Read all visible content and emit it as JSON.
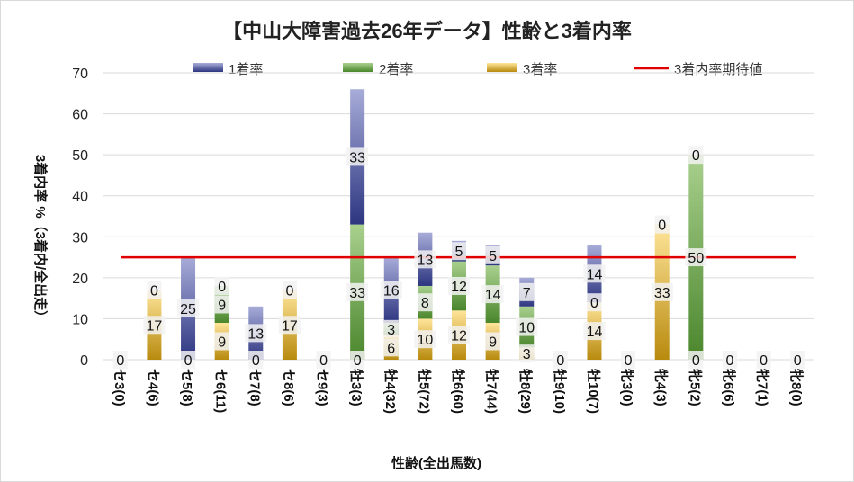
{
  "chart_data": {
    "type": "bar",
    "stacked": true,
    "title": "【中山大障害過去26年データ】性齢と3着内率",
    "xlabel": "性齢(全出馬数)",
    "ylabel": "3着内率 %（3着内/全出走）",
    "ylim": [
      0,
      70
    ],
    "yticks": [
      "0",
      "10",
      "20",
      "30",
      "40",
      "50",
      "60",
      "70"
    ],
    "legend_position": "top",
    "categories": [
      "セ3(0)",
      "セ4(6)",
      "セ5(8)",
      "セ6(11)",
      "セ7(8)",
      "セ8(6)",
      "セ9(3)",
      "牡3(3)",
      "牡4(32)",
      "牡5(72)",
      "牡6(60)",
      "牡7(44)",
      "牡8(29)",
      "牡9(10)",
      "牡10(7)",
      "牝3(0)",
      "牝4(3)",
      "牝5(2)",
      "牝6(6)",
      "牝7(1)",
      "牝8(0)"
    ],
    "series": [
      {
        "name": "3着率",
        "values": [
          0,
          17,
          0,
          9,
          0,
          17,
          0,
          0,
          6,
          10,
          12,
          9,
          3,
          0,
          14,
          0,
          33,
          0,
          0,
          0,
          0
        ],
        "color": "#c9a227"
      },
      {
        "name": "2着率",
        "values": [
          0,
          0,
          0,
          9,
          0,
          0,
          0,
          33,
          3,
          8,
          12,
          14,
          10,
          0,
          0,
          0,
          0,
          50,
          0,
          0,
          0
        ],
        "color": "#5e9e3a"
      },
      {
        "name": "1着率",
        "values": [
          0,
          0,
          25,
          0,
          13,
          0,
          0,
          33,
          16,
          13,
          5,
          5,
          7,
          0,
          14,
          0,
          0,
          0,
          0,
          0,
          0
        ],
        "color": "#3a4590"
      }
    ],
    "data_labels": [
      {
        "value": "0",
        "category": 0,
        "y": 0
      },
      {
        "value": "17",
        "category": 1,
        "y": 8.5
      },
      {
        "value": "0",
        "category": 1,
        "y": 17
      },
      {
        "value": "0",
        "category": 2,
        "y": 0
      },
      {
        "value": "25",
        "category": 2,
        "y": 12.5
      },
      {
        "value": "9",
        "category": 3,
        "y": 4.5
      },
      {
        "value": "9",
        "category": 3,
        "y": 13.5
      },
      {
        "value": "0",
        "category": 3,
        "y": 18
      },
      {
        "value": "0",
        "category": 4,
        "y": 0
      },
      {
        "value": "13",
        "category": 4,
        "y": 6.5
      },
      {
        "value": "17",
        "category": 5,
        "y": 8.5
      },
      {
        "value": "0",
        "category": 5,
        "y": 17
      },
      {
        "value": "0",
        "category": 6,
        "y": 0
      },
      {
        "value": "0",
        "category": 7,
        "y": 0
      },
      {
        "value": "33",
        "category": 7,
        "y": 16.5
      },
      {
        "value": "33",
        "category": 7,
        "y": 49.5
      },
      {
        "value": "6",
        "category": 8,
        "y": 3
      },
      {
        "value": "3",
        "category": 8,
        "y": 7.5
      },
      {
        "value": "16",
        "category": 8,
        "y": 17
      },
      {
        "value": "10",
        "category": 9,
        "y": 5
      },
      {
        "value": "8",
        "category": 9,
        "y": 14
      },
      {
        "value": "13",
        "category": 9,
        "y": 24.5
      },
      {
        "value": "12",
        "category": 10,
        "y": 6
      },
      {
        "value": "12",
        "category": 10,
        "y": 18
      },
      {
        "value": "5",
        "category": 10,
        "y": 26.5
      },
      {
        "value": "9",
        "category": 11,
        "y": 4.5
      },
      {
        "value": "14",
        "category": 11,
        "y": 16
      },
      {
        "value": "5",
        "category": 11,
        "y": 25.5
      },
      {
        "value": "3",
        "category": 12,
        "y": 1.5
      },
      {
        "value": "10",
        "category": 12,
        "y": 8
      },
      {
        "value": "7",
        "category": 12,
        "y": 16.5
      },
      {
        "value": "0",
        "category": 13,
        "y": 0
      },
      {
        "value": "14",
        "category": 14,
        "y": 7
      },
      {
        "value": "0",
        "category": 14,
        "y": 14
      },
      {
        "value": "14",
        "category": 14,
        "y": 21
      },
      {
        "value": "0",
        "category": 15,
        "y": 0
      },
      {
        "value": "33",
        "category": 16,
        "y": 16.5
      },
      {
        "value": "0",
        "category": 16,
        "y": 33
      },
      {
        "value": "0",
        "category": 17,
        "y": 0
      },
      {
        "value": "50",
        "category": 17,
        "y": 25
      },
      {
        "value": "0",
        "category": 17,
        "y": 50
      },
      {
        "value": "0",
        "category": 18,
        "y": 0
      },
      {
        "value": "0",
        "category": 19,
        "y": 0
      },
      {
        "value": "0",
        "category": 20,
        "y": 0
      }
    ],
    "reference_line": {
      "name": "3着内率期待値",
      "value": 25,
      "color": "#e00000"
    },
    "legend": [
      {
        "name": "1着率",
        "color": "#3a4590"
      },
      {
        "name": "2着率",
        "color": "#5e9e3a"
      },
      {
        "name": "3着率",
        "color": "#c9a227"
      },
      {
        "name": "3着内率期待値",
        "color": "#e00000"
      }
    ]
  }
}
